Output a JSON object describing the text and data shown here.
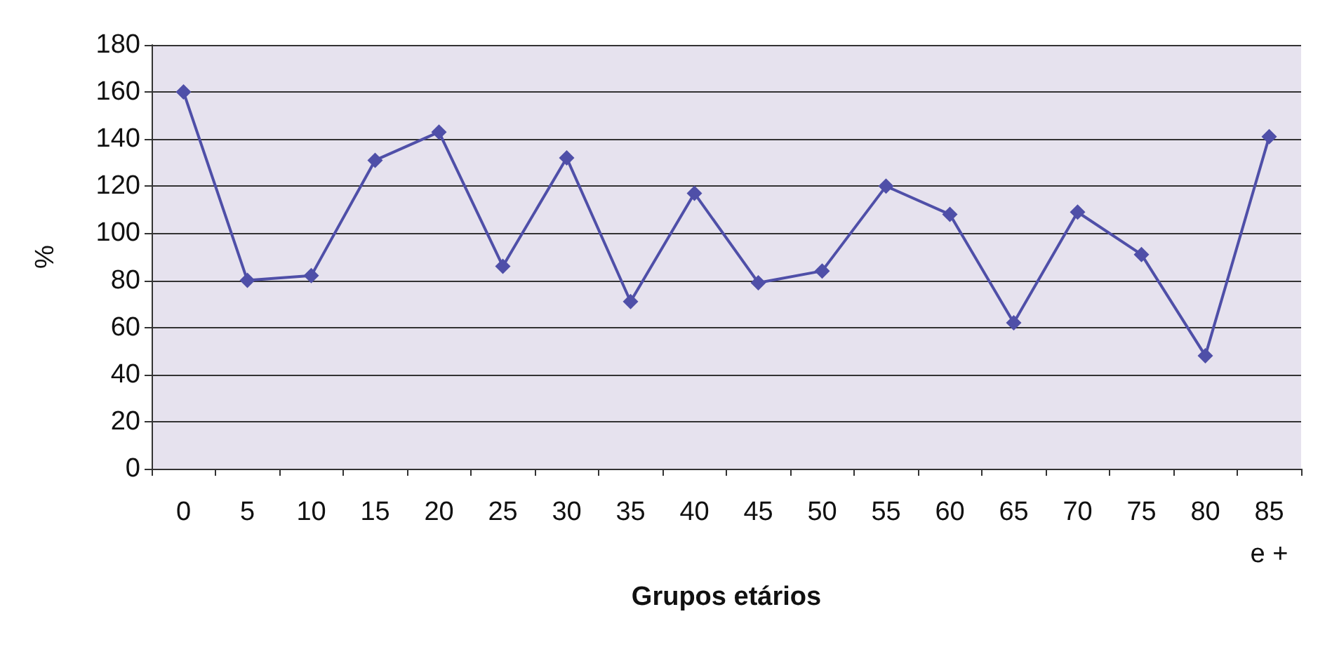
{
  "chart_data": {
    "type": "line",
    "xlabel": "Grupos etários",
    "ylabel": "%",
    "categories": [
      "0",
      "5",
      "10",
      "15",
      "20",
      "25",
      "30",
      "35",
      "40",
      "45",
      "50",
      "55",
      "60",
      "65",
      "70",
      "75",
      "80",
      "85\ne +"
    ],
    "series": [
      {
        "color": "#4f4fa8",
        "values": [
          160,
          80,
          82,
          131,
          143,
          86,
          132,
          71,
          117,
          79,
          84,
          120,
          108,
          62,
          109,
          91,
          48,
          141
        ]
      }
    ],
    "ylim": [
      0,
      180
    ],
    "yticks": [
      0,
      20,
      40,
      60,
      80,
      100,
      120,
      140,
      160,
      180
    ],
    "grid": "y",
    "marker": "diamond",
    "line_style": "solid"
  }
}
